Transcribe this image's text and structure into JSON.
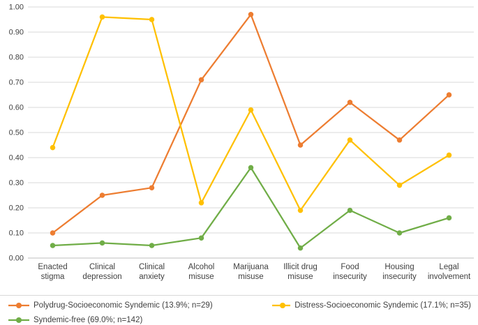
{
  "chart_data": {
    "type": "line",
    "title": "",
    "xlabel": "",
    "ylabel": "",
    "ylim": [
      0,
      1
    ],
    "ytick_step": 0.1,
    "ytick_labels": [
      "0.00",
      "0.10",
      "0.20",
      "0.30",
      "0.40",
      "0.50",
      "0.60",
      "0.70",
      "0.80",
      "0.90",
      "1.00"
    ],
    "grid": true,
    "legend_position": "bottom",
    "categories": [
      "Enacted stigma",
      "Clinical depression",
      "Clinical anxiety",
      "Alcohol misuse",
      "Marijuana misuse",
      "Illicit drug misuse",
      "Food insecurity",
      "Housing insecurity",
      "Legal involvement"
    ],
    "series": [
      {
        "name": "Polydrug-Socioeconomic Syndemic (13.9%; n=29)",
        "color": "#ED7D31",
        "marker": "circle",
        "values": [
          0.1,
          0.25,
          0.28,
          0.71,
          0.97,
          0.45,
          0.62,
          0.47,
          0.65
        ]
      },
      {
        "name": "Distress-Socioeconomic Syndemic (17.1%; n=35)",
        "color": "#FFC000",
        "marker": "circle",
        "values": [
          0.44,
          0.96,
          0.95,
          0.22,
          0.59,
          0.19,
          0.47,
          0.29,
          0.41
        ]
      },
      {
        "name": "Syndemic-free (69.0%; n=142)",
        "color": "#70AD47",
        "marker": "circle",
        "values": [
          0.05,
          0.06,
          0.05,
          0.08,
          0.36,
          0.04,
          0.19,
          0.1,
          0.16
        ]
      }
    ],
    "colors": {
      "gridline": "#D9D9D9",
      "axis_line": "#BFBFBF",
      "tick_text": "#404040",
      "background": "#FFFFFF"
    }
  }
}
